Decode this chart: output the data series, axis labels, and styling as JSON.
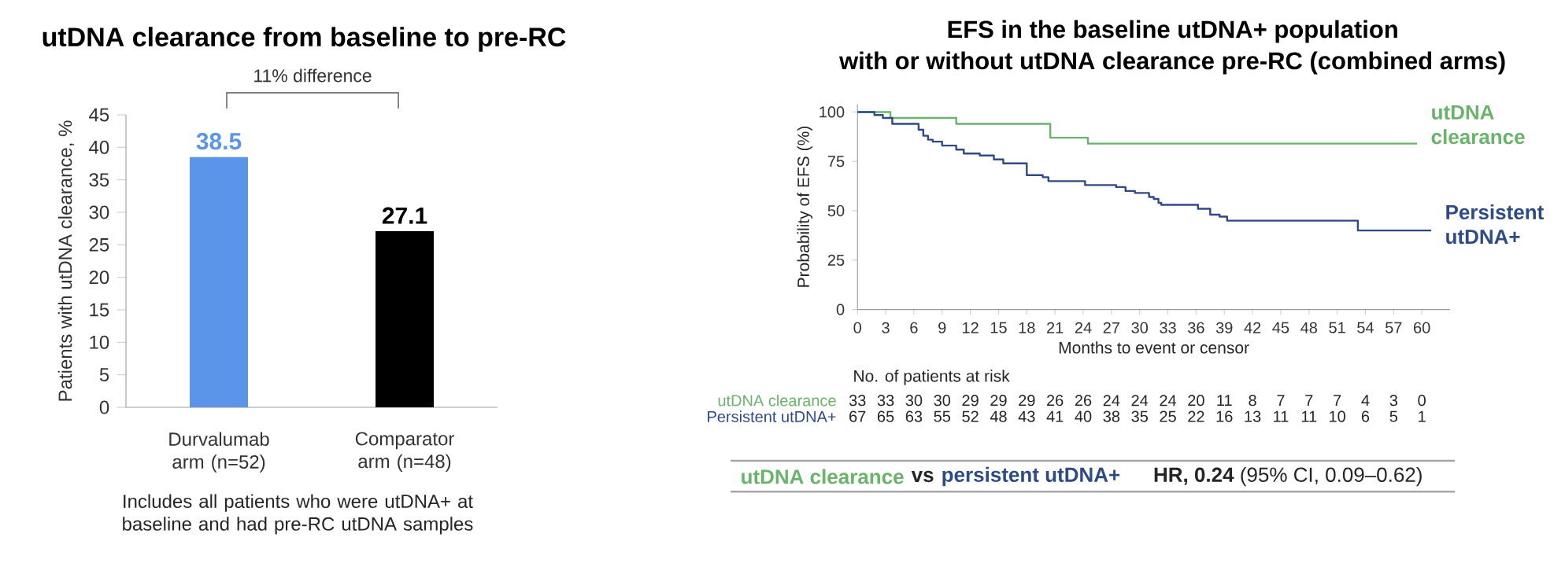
{
  "chart_data": [
    {
      "type": "bar",
      "title": "utDNA clearance from baseline to pre-RC",
      "ylabel": "Patients with utDNA clearance, %",
      "categories": [
        "Durvalumab arm (n=52)",
        "Comparator arm (n=48)"
      ],
      "values": [
        38.5,
        27.1
      ],
      "colors": [
        "#5b95e9",
        "#000000"
      ],
      "ylim": [
        0,
        45
      ],
      "yticks": [
        0,
        5,
        10,
        15,
        20,
        25,
        30,
        35,
        40,
        45
      ],
      "data_labels": true,
      "annotations": [
        "11% difference",
        "Includes all patients who were utDNA+ at baseline and had pre-RC utDNA samples"
      ]
    },
    {
      "type": "step",
      "title": "EFS in the baseline utDNA+ population",
      "subtitle": "with or without utDNA clearance pre-RC (combined arms)",
      "xlabel": "Months to event or censor",
      "ylabel": "Probability of EFS (%)",
      "xlim": [
        0,
        63
      ],
      "xticks": [
        0,
        3,
        6,
        9,
        12,
        15,
        18,
        21,
        24,
        27,
        30,
        33,
        36,
        39,
        42,
        45,
        48,
        51,
        54,
        57,
        60
      ],
      "ylim": [
        0,
        104
      ],
      "yticks": [
        0,
        25,
        50,
        75,
        100
      ],
      "series": [
        {
          "name": "utDNA clearance",
          "color": "#6ab36a",
          "x": [
            0,
            3.5,
            10.5,
            20.5,
            24.5,
            59.5
          ],
          "values": [
            100,
            97,
            94,
            87,
            84,
            84
          ]
        },
        {
          "name": "Persistent utDNA+",
          "color": "#2e4a87",
          "x": [
            0,
            1.8,
            2.7,
            3.7,
            6.5,
            7,
            7.5,
            8,
            9,
            10.5,
            11.3,
            13,
            14.5,
            15.5,
            18,
            19.7,
            20.3,
            24.2,
            27.5,
            28.5,
            29.5,
            31,
            31.5,
            32,
            32.3,
            36.2,
            37.5,
            38.5,
            39.3,
            53.2,
            61
          ],
          "values": [
            100,
            98.5,
            97,
            94,
            91,
            88,
            86,
            85,
            83,
            81,
            79,
            78,
            76,
            74,
            68,
            67,
            65,
            63,
            62,
            60,
            59,
            57,
            56,
            54,
            53,
            51,
            48,
            47,
            45,
            40,
            40
          ]
        }
      ],
      "annotations": [
        "No. of patients at risk",
        "33",
        "33",
        "30",
        "30",
        "29",
        "29",
        "29",
        "26",
        "26",
        "24",
        "24",
        "24",
        "20",
        "11",
        "8",
        "7",
        "7",
        "7",
        "4",
        "3",
        "0",
        "67",
        "65",
        "63",
        "55",
        "52",
        "48",
        "43",
        "41",
        "40",
        "38",
        "35",
        "25",
        "22",
        "16",
        "13",
        "11",
        "11",
        "10",
        "6",
        "5",
        "1",
        "utDNA clearance",
        "vs",
        "persistent utDNA+",
        "**HR, 0.24** (95% CI, 0.09–0.62)"
      ]
    }
  ]
}
